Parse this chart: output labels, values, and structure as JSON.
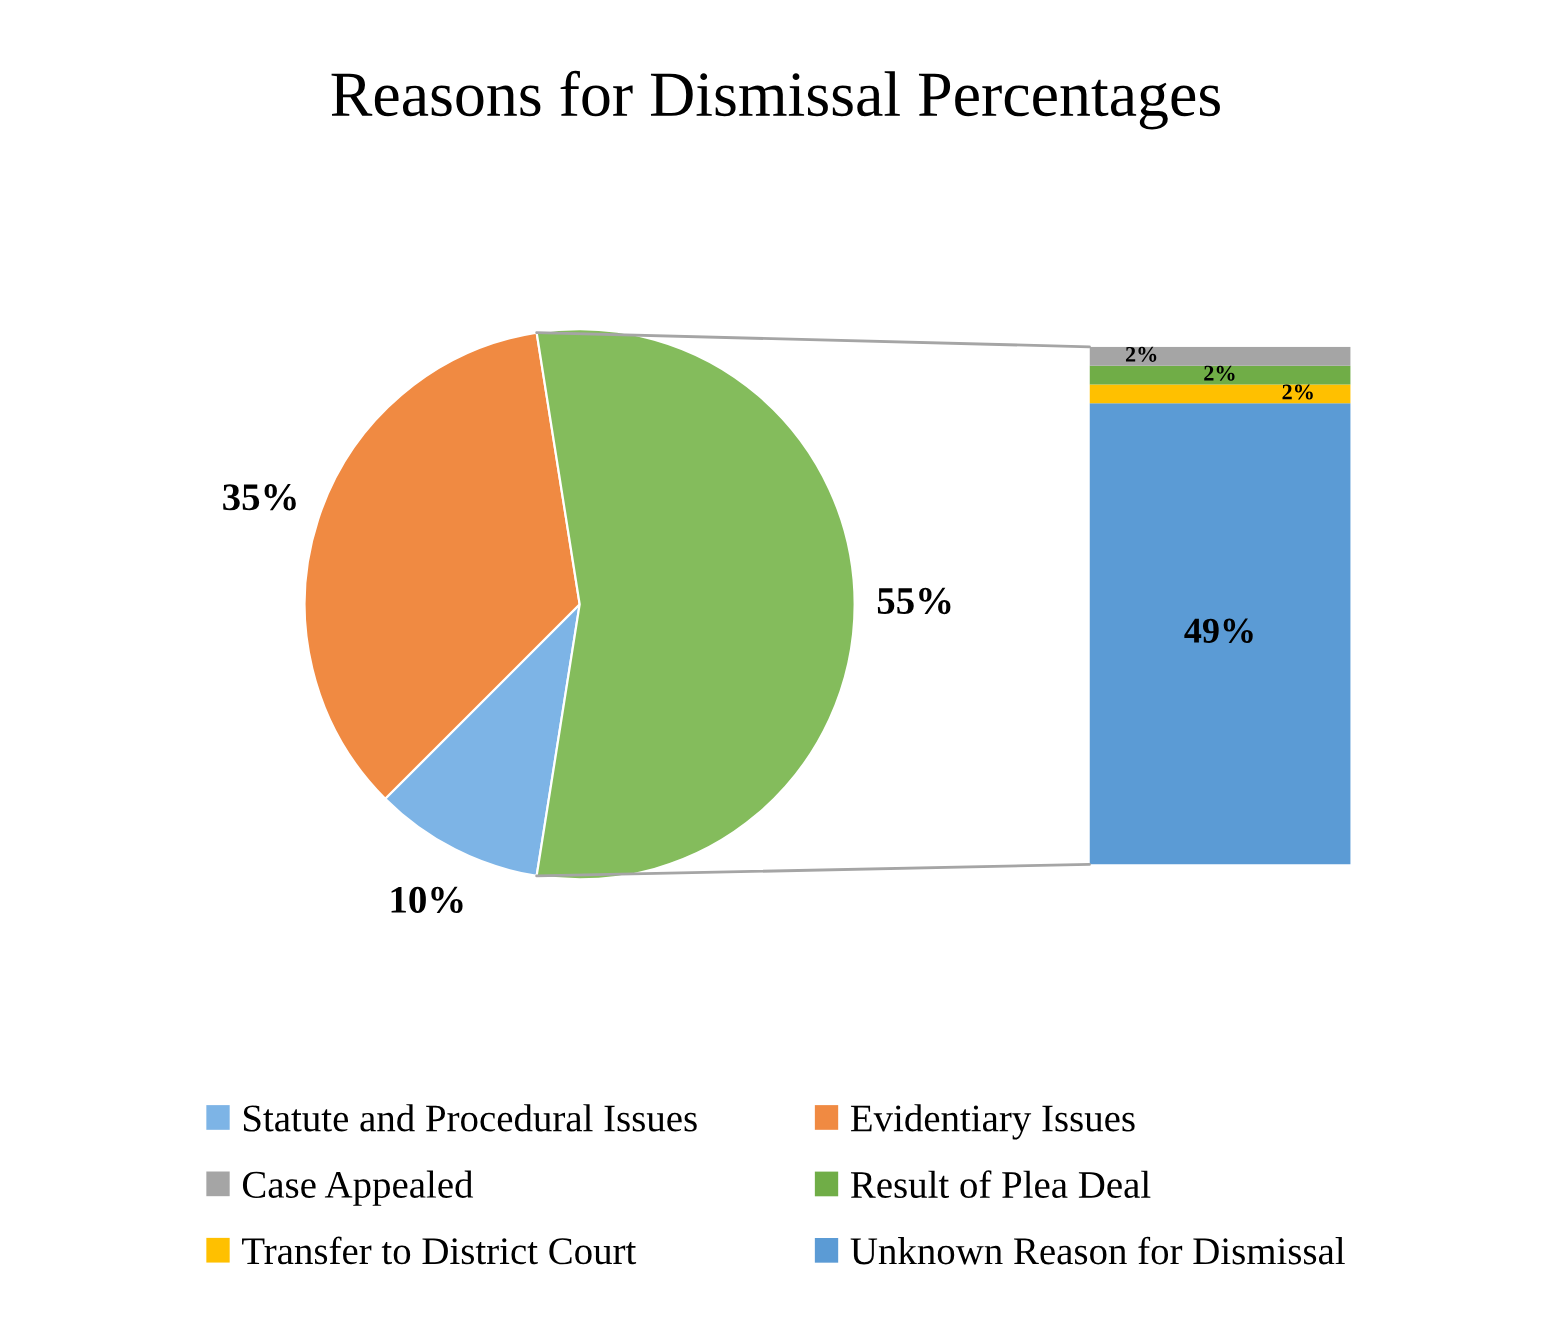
{
  "chart_data": [
    {
      "type": "pie",
      "title": "Reasons for Dismissal Percentages",
      "categories": [
        "Statute and Procedural Issues",
        "Evidentiary Issues",
        null
      ],
      "values": [
        10,
        35,
        55
      ],
      "colors": [
        "#7db4e6",
        "#f08a42",
        "#84bc5c"
      ],
      "value_labels": [
        "10%",
        "35%",
        "55%"
      ],
      "legend": "bottom"
    },
    {
      "type": "bar",
      "stacked": true,
      "categories": [
        null
      ],
      "series": [
        {
          "name": "Unknown Reason for Dismissal",
          "color": "#5b9bd5",
          "values": [
            49
          ],
          "value_labels": [
            "49%"
          ]
        },
        {
          "name": "Transfer to District Court",
          "color": "#ffc000",
          "values": [
            2
          ],
          "value_labels": [
            "2%"
          ]
        },
        {
          "name": "Result of Plea Deal",
          "color": "#70ad47",
          "values": [
            2
          ],
          "value_labels": [
            "2%"
          ]
        },
        {
          "name": "Case Appealed",
          "color": "#a5a5a5",
          "values": [
            2
          ],
          "value_labels": [
            "2%"
          ]
        }
      ],
      "legend": "bottom"
    }
  ]
}
